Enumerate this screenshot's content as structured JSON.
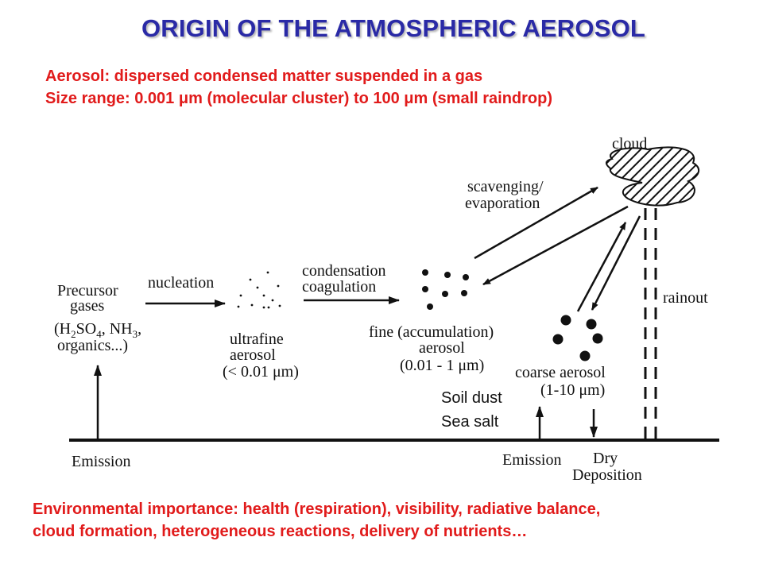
{
  "title": "ORIGIN OF THE ATMOSPHERIC AEROSOL",
  "definition": {
    "line1": "Aerosol: dispersed condensed matter suspended in a gas",
    "line2": "Size range: 0.001 μm (molecular cluster) to 100 μm (small raindrop)"
  },
  "diagram": {
    "cloud": "cloud",
    "scavenging": "scavenging/",
    "evaporation": "evaporation",
    "precursor_line1": "Precursor",
    "precursor_line2": "gases",
    "precursor_h2so4": "(H",
    "precursor_sub2": "2",
    "precursor_so": "SO",
    "precursor_sub4": "4",
    "precursor_nh": ", NH",
    "precursor_sub3": "3",
    "precursor_comma": ",",
    "precursor_line4": "organics...)",
    "nucleation": "nucleation",
    "ultrafine_line1": "ultrafine",
    "ultrafine_line2": "aerosol",
    "ultrafine_line3": "(< 0.01 μm)",
    "condensation": "condensation",
    "coagulation": "coagulation",
    "fine_line1": "fine (accumulation)",
    "fine_line2": "aerosol",
    "fine_line3": "(0.01 - 1 μm)",
    "coarse_line1": "coarse aerosol",
    "coarse_line2": "(1-10 μm)",
    "rainout": "rainout",
    "soil_dust": "Soil dust",
    "sea_salt": "Sea salt",
    "emission_left": "Emission",
    "emission_right": "Emission",
    "dry": "Dry",
    "deposition": "Deposition"
  },
  "importance": {
    "line1": "Environmental importance: health (respiration), visibility, radiative balance,",
    "line2": "cloud formation, heterogeneous reactions, delivery of nutrients…"
  },
  "colors": {
    "title": "#2a2aa6",
    "red": "#e11b1b",
    "ink": "#111111"
  }
}
